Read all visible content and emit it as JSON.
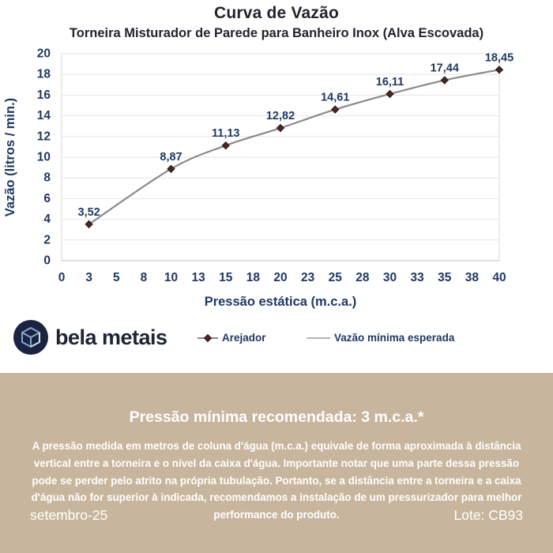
{
  "chart_data": {
    "type": "line",
    "title": "Curva de Vazão",
    "subtitle": "Torneira Misturador de Parede para Banheiro Inox (Alva Escovada)",
    "xlabel": "Pressão estática (m.c.a.)",
    "ylabel": "Vazão (litros / min.)",
    "x_tick_labels": [
      "0",
      "3",
      "5",
      "8",
      "10",
      "13",
      "15",
      "18",
      "20",
      "23",
      "25",
      "28",
      "30",
      "33",
      "35",
      "38",
      "40"
    ],
    "ylim": [
      0,
      20
    ],
    "y_tick_step": 2,
    "grid": "horizontal",
    "legend_position": "bottom",
    "series": [
      {
        "name": "Arejador",
        "x": [
          3,
          10,
          15,
          20,
          25,
          30,
          35,
          40
        ],
        "y": [
          3.52,
          8.87,
          11.13,
          12.82,
          14.61,
          16.11,
          17.44,
          18.45
        ],
        "point_labels": [
          "3,52",
          "8,87",
          "11,13",
          "12,82",
          "14,61",
          "16,11",
          "17,44",
          "18,45"
        ],
        "line_color": "#8a8a8a",
        "marker": "diamond",
        "marker_color": "#4a2727"
      },
      {
        "name": "Vazão mínima esperada",
        "x": [],
        "y": [],
        "line_color": "#b3b3b3",
        "marker": "none"
      }
    ]
  },
  "brand": {
    "name": "bela metais"
  },
  "notice": {
    "heading": "Pressão mínima recomendada: 3 m.c.a.*",
    "body": "A pressão medida em metros de coluna d'água (m.c.a.) equivale de forma aproximada à distância vertical entre a torneira e o nível da caixa d'água. Importante notar que uma parte dessa pressão pode se perder pelo atrito na própria tubulação. Portanto, se a distância entre a torneira e a caixa d'água não for superior à indicada, recomendamos a instalação de um pressurizador para melhor performance do produto.",
    "date": "setembro-25",
    "lot": "Lote: CB93"
  },
  "colors": {
    "axis_navy": "#1f3864",
    "title_text": "#20242e",
    "grid_gray": "#e6e6e6",
    "plot_border": "#d9d9d9",
    "line_gray": "#8a8a8a",
    "marker_maroon": "#4a2727",
    "panel_tan": "#c7b69d",
    "panel_text": "#ffffff",
    "logo_navy": "#1c2340",
    "logo_stroke": "#7fa8cc"
  }
}
